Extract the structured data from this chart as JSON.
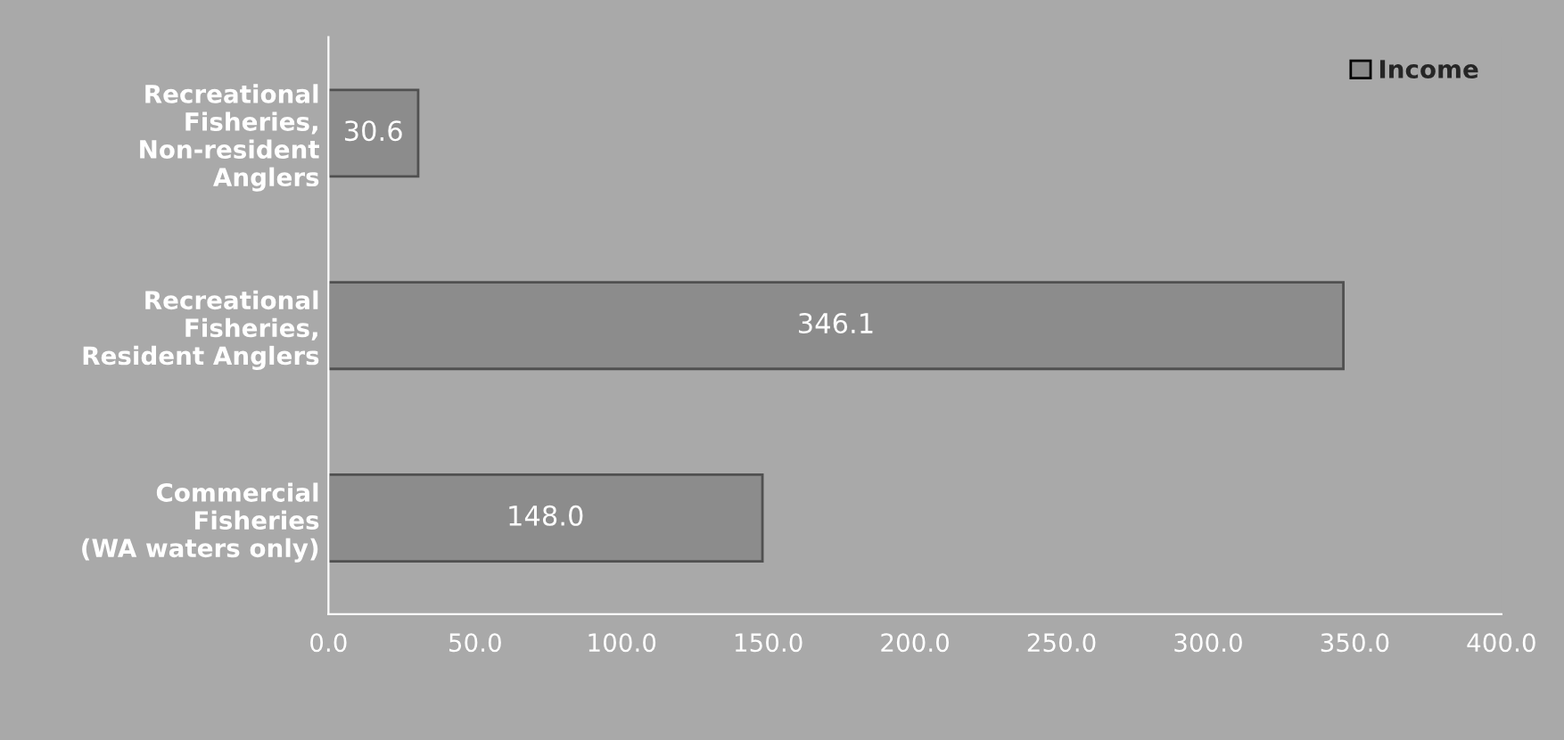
{
  "chart_data": {
    "type": "bar",
    "orientation": "horizontal",
    "categories": [
      "Recreational\nFisheries,\nNon-resident\nAnglers",
      "Recreational\nFisheries,\nResident Anglers",
      "Commercial\nFisheries\n(WA waters only)"
    ],
    "series": [
      {
        "name": "Income",
        "color": "#8c8c8c",
        "values": [
          30.6,
          346.1,
          148.0
        ],
        "value_labels": [
          "30.6",
          "346.1",
          "148.0"
        ]
      }
    ],
    "xlim": [
      0,
      400
    ],
    "xticks": [
      {
        "value": 0,
        "label": "0.0"
      },
      {
        "value": 50,
        "label": "50.0"
      },
      {
        "value": 100,
        "label": "100.0"
      },
      {
        "value": 150,
        "label": "150.0"
      },
      {
        "value": 200,
        "label": "200.0"
      },
      {
        "value": 250,
        "label": "250.0"
      },
      {
        "value": 300,
        "label": "300.0"
      },
      {
        "value": 350,
        "label": "350.0"
      },
      {
        "value": 400,
        "label": "400.0"
      }
    ],
    "grid": false,
    "legend": "top right"
  }
}
